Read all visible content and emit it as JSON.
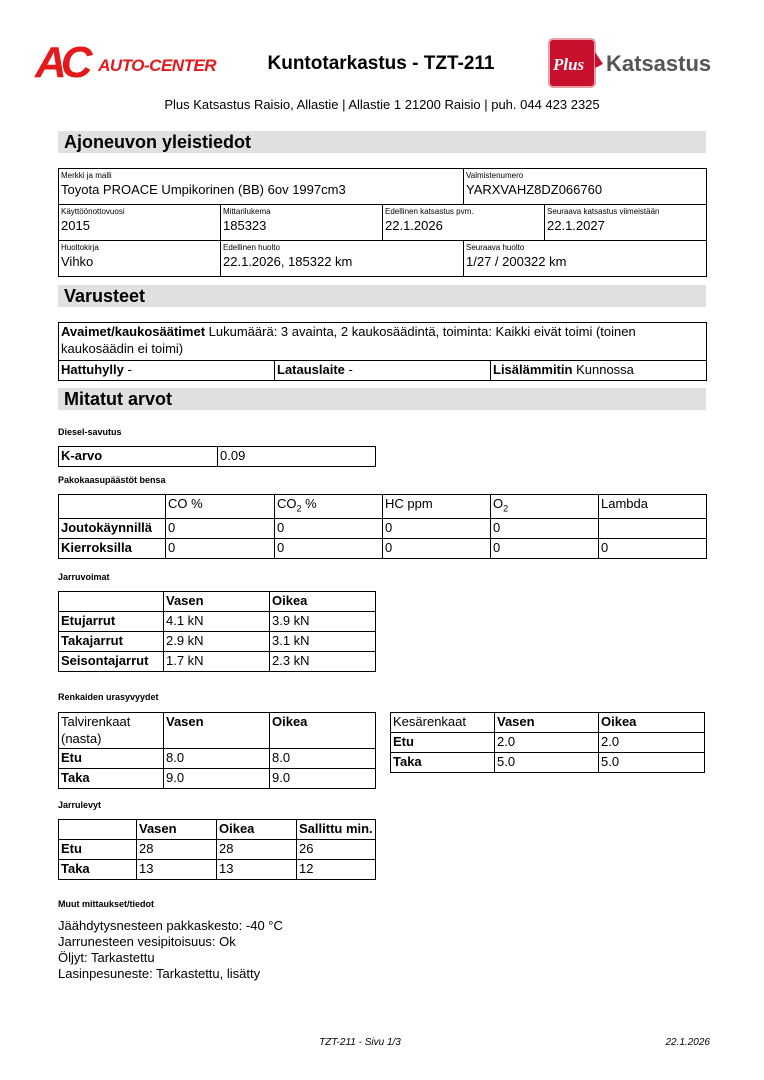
{
  "header": {
    "left_logo_text": "AC AUTO-CENTER",
    "right_logo_text": "Plus Katsastus",
    "title": "Kuntotarkastus - TZT-211",
    "address": "Plus Katsastus Raisio, Allastie | Allastie 1 21200 Raisio | puh. 044 423 2325",
    "brand_red": "#e3191b",
    "plus_red": "#c8102e"
  },
  "sections": {
    "general": "Ajoneuvon yleistiedot",
    "equipment": "Varusteet",
    "measured": "Mitatut arvot"
  },
  "vehicle": {
    "rows": [
      [
        {
          "label": "Merkki ja malli",
          "value": "Toyota PROACE Umpikorinen (BB) 6ov 1997cm3"
        },
        {
          "label": "Valmistenumero",
          "value": "YARXVAHZ8DZ066760"
        }
      ],
      [
        {
          "label": "Käyttöönottovuosi",
          "value": "2015"
        },
        {
          "label": "Mittarilukema",
          "value": "185323"
        },
        {
          "label": "Edellinen katsastus pvm.",
          "value": "22.1.2026"
        },
        {
          "label": "Seuraava katsastus viimeistään",
          "value": "22.1.2027"
        }
      ],
      [
        {
          "label": "Huoltokirja",
          "value": "Vihko"
        },
        {
          "label": "Edellinen huolto",
          "value": "22.1.2026, 185322 km"
        },
        {
          "label": "Seuraava huolto",
          "value": "1/27 / 200322 km"
        }
      ]
    ]
  },
  "equipment": {
    "keys_label": "Avaimet/kaukosäätimet",
    "keys_value": "Lukumäärä: 3 avainta, 2 kaukosäädintä, toiminta: Kaikki eivät toimi (toinen kaukosäädin ei toimi)",
    "items": [
      {
        "label": "Hattuhylly",
        "value": "-"
      },
      {
        "label": "Latauslaite",
        "value": "-"
      },
      {
        "label": "Lisälämmitin",
        "value": "Kunnossa"
      }
    ]
  },
  "diesel": {
    "title": "Diesel-savutus",
    "rows": [
      [
        "K-arvo",
        "0.09"
      ]
    ]
  },
  "emissions": {
    "title": "Pakokaasupäästöt bensa",
    "headers": [
      "",
      "CO %",
      "CO|2| %",
      "HC ppm",
      "O|2|",
      "Lambda"
    ],
    "rows": [
      [
        "Joutokäynnillä",
        "0",
        "0",
        "0",
        "0",
        ""
      ],
      [
        "Kierroksilla",
        "0",
        "0",
        "0",
        "0",
        "0"
      ]
    ]
  },
  "brakes": {
    "title": "Jarruvoimat",
    "headers": [
      "",
      "Vasen",
      "Oikea"
    ],
    "rows": [
      [
        "Etujarrut",
        "4.1 kN",
        "3.9 kN"
      ],
      [
        "Takajarrut",
        "2.9 kN",
        "3.1 kN"
      ],
      [
        "Seisontajarrut",
        "1.7 kN",
        "2.3 kN"
      ]
    ]
  },
  "tyres": {
    "title": "Renkaiden urasyvyydet",
    "winter": {
      "headers": [
        "Talvirenkaat (nasta)",
        "Vasen",
        "Oikea"
      ],
      "rows": [
        [
          "Etu",
          "8.0",
          "8.0"
        ],
        [
          "Taka",
          "9.0",
          "9.0"
        ]
      ]
    },
    "summer": {
      "headers": [
        "Kesärenkaat",
        "Vasen",
        "Oikea"
      ],
      "rows": [
        [
          "Etu",
          "2.0",
          "2.0"
        ],
        [
          "Taka",
          "5.0",
          "5.0"
        ]
      ]
    }
  },
  "discs": {
    "title": "Jarrulevyt",
    "headers": [
      "",
      "Vasen",
      "Oikea",
      "Sallittu min."
    ],
    "rows": [
      [
        "Etu",
        "28",
        "28",
        "26"
      ],
      [
        "Taka",
        "13",
        "13",
        "12"
      ]
    ]
  },
  "other": {
    "title": "Muut mittaukset/tiedot",
    "lines": [
      "Jäähdytysnesteen pakkaskesto: -40 °C",
      "Jarrunesteen vesipitoisuus: Ok",
      "Öljyt: Tarkastettu",
      "Lasinpesuneste: Tarkastettu, lisätty"
    ]
  },
  "footer": {
    "page": "TZT-211 - Sivu 1/3",
    "date": "22.1.2026"
  }
}
